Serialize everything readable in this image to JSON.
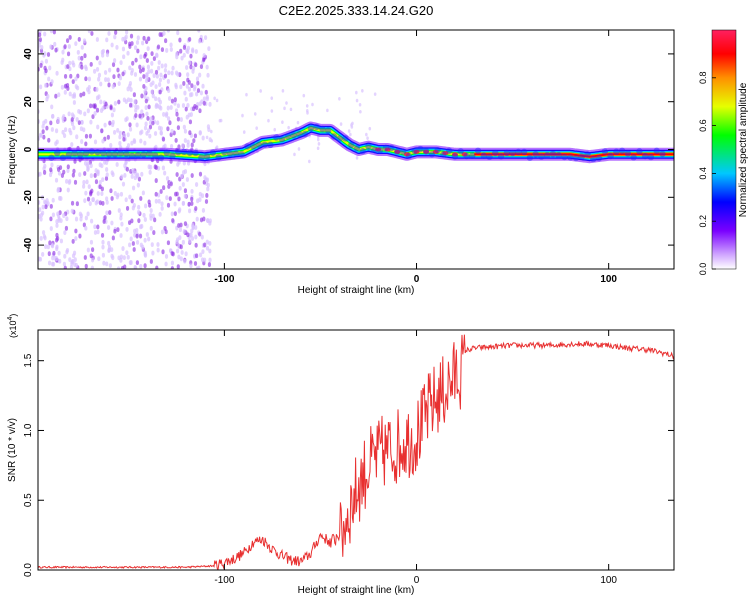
{
  "title": "C2E2.2025.333.14.24.G20",
  "chart_data": [
    {
      "type": "heatmap",
      "name": "spectrogram",
      "xlabel": "Height of straight line (km)",
      "ylabel": "Frequency (Hz)",
      "xlim": [
        -197,
        134
      ],
      "ylim": [
        -50,
        50
      ],
      "xticks": [
        -100,
        0,
        100
      ],
      "xtick_labels": [
        "-100",
        "0",
        "100"
      ],
      "yticks": [
        -40,
        -20,
        0,
        20,
        40
      ],
      "ytick_labels": [
        "-40",
        "-20",
        "0",
        "20",
        "40"
      ],
      "ridge": {
        "x": [
          -197,
          -150,
          -130,
          -110,
          -90,
          -80,
          -70,
          -60,
          -55,
          -50,
          -45,
          -40,
          -35,
          -30,
          -25,
          -20,
          -15,
          -10,
          -5,
          0,
          10,
          20,
          40,
          60,
          80,
          90,
          100,
          134
        ],
        "y": [
          -2,
          -2,
          -2,
          -3,
          -1,
          3,
          4,
          7,
          9,
          8,
          8,
          5,
          2,
          0,
          1,
          0,
          0,
          -1,
          -2,
          -1,
          -1,
          -2,
          -2,
          -2,
          -2,
          -3,
          -2,
          -2
        ]
      },
      "colorbar": {
        "label": "Normalized spectral amplitude",
        "range": [
          0,
          1
        ],
        "ticks": [
          0.0,
          0.2,
          0.4,
          0.6,
          0.8
        ],
        "tick_labels": [
          "0.0",
          "0.2",
          "0.4",
          "0.6",
          "0.8"
        ],
        "colors": [
          "#ffffff",
          "#d0a6ff",
          "#7a00ff",
          "#0000ff",
          "#00c8ff",
          "#00ff00",
          "#e6ff00",
          "#ff9000",
          "#ff0000",
          "#ff2060"
        ]
      }
    },
    {
      "type": "line",
      "name": "snr",
      "xlabel": "Height of straight line (km)",
      "ylabel": "SNR (10 * v/v)",
      "y_multiplier": "(x10^4)",
      "multiplier_base": "(x10",
      "multiplier_exp": "4",
      "multiplier_close": ")",
      "color": "#e83030",
      "xlim": [
        -197,
        134
      ],
      "ylim": [
        0,
        1.72
      ],
      "xticks": [
        -100,
        0,
        100
      ],
      "xtick_labels": [
        "-100",
        "0",
        "100"
      ],
      "yticks": [
        0.0,
        0.5,
        1.0,
        1.5
      ],
      "ytick_labels": [
        "0.0",
        "0.5",
        "1.0",
        "1.5"
      ],
      "x": [
        -197,
        -180,
        -160,
        -140,
        -120,
        -105,
        -95,
        -90,
        -85,
        -80,
        -75,
        -70,
        -65,
        -60,
        -55,
        -50,
        -45,
        -40,
        -38,
        -35,
        -32,
        -30,
        -28,
        -25,
        -22,
        -20,
        -18,
        -15,
        -12,
        -10,
        -8,
        -5,
        -2,
        0,
        3,
        6,
        10,
        15,
        20,
        25,
        30,
        40,
        50,
        60,
        70,
        80,
        90,
        100,
        110,
        120,
        130,
        134
      ],
      "y": [
        0.02,
        0.02,
        0.02,
        0.02,
        0.02,
        0.03,
        0.08,
        0.12,
        0.2,
        0.22,
        0.15,
        0.1,
        0.07,
        0.06,
        0.12,
        0.25,
        0.2,
        0.3,
        0.42,
        0.55,
        0.65,
        0.72,
        0.78,
        0.85,
        0.9,
        0.92,
        0.95,
        0.97,
        0.98,
        1.0,
        1.02,
        1.05,
        1.05,
        1.08,
        1.15,
        1.25,
        1.33,
        1.4,
        1.5,
        1.57,
        1.59,
        1.6,
        1.61,
        1.61,
        1.61,
        1.62,
        1.62,
        1.61,
        1.59,
        1.58,
        1.55,
        1.53
      ]
    }
  ]
}
